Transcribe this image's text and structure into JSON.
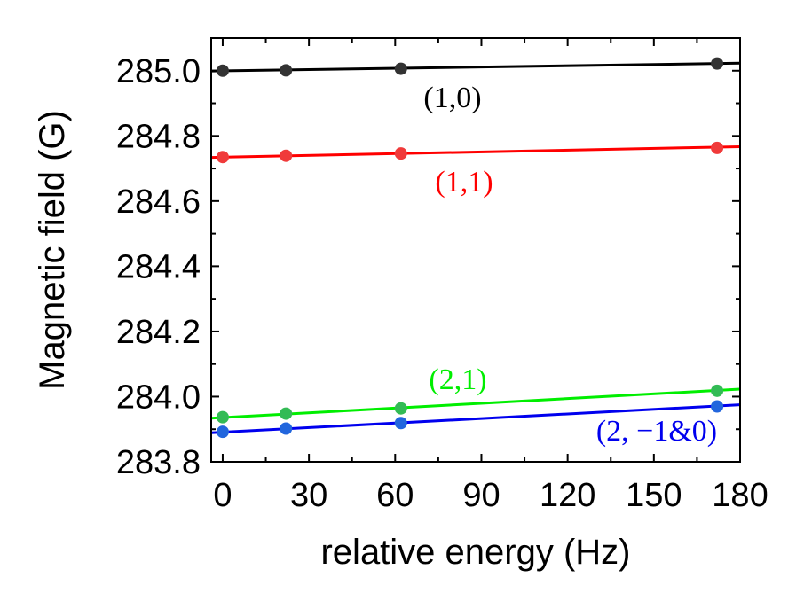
{
  "chart_data": {
    "type": "scatter",
    "xlabel": "relative energy (Hz)",
    "ylabel": "Magnetic field (G)",
    "xlim": [
      -4,
      180
    ],
    "ylim": [
      283.8,
      285.1
    ],
    "xticks": [
      0,
      30,
      60,
      90,
      120,
      150,
      180
    ],
    "yticks": [
      283.8,
      284.0,
      284.2,
      284.4,
      284.6,
      284.8,
      285.0
    ],
    "xtick_labels": [
      "0",
      "30",
      "60",
      "90",
      "120",
      "150",
      "180"
    ],
    "ytick_labels": [
      "283.8",
      "284.0",
      "284.2",
      "284.4",
      "284.6",
      "284.8",
      "285.0"
    ],
    "series": [
      {
        "name": "(1,0)",
        "color": "#000000",
        "marker_color": "#333333",
        "x": [
          0,
          22,
          62,
          172
        ],
        "y": [
          285.0,
          285.001,
          285.006,
          285.022
        ],
        "fit": [
          284.999,
          285.023
        ]
      },
      {
        "name": "(1,1)",
        "color": "#ff0000",
        "marker_color": "#f03a3a",
        "x": [
          0,
          22,
          62,
          172
        ],
        "y": [
          284.735,
          284.739,
          284.746,
          284.763
        ],
        "fit": [
          284.734,
          284.767
        ]
      },
      {
        "name": "(2,1)",
        "color": "#00ee00",
        "marker_color": "#33bb55",
        "x": [
          0,
          22,
          62,
          172
        ],
        "y": [
          283.937,
          283.948,
          283.964,
          284.018
        ],
        "fit": [
          283.934,
          284.023
        ]
      },
      {
        "name": "(2, −1&0)",
        "color": "#0000ee",
        "marker_color": "#2266dd",
        "x": [
          0,
          22,
          62,
          172
        ],
        "y": [
          283.892,
          283.902,
          283.919,
          283.97
        ],
        "fit": [
          283.889,
          283.975
        ]
      }
    ],
    "grid": false,
    "legend": "inline labels"
  }
}
